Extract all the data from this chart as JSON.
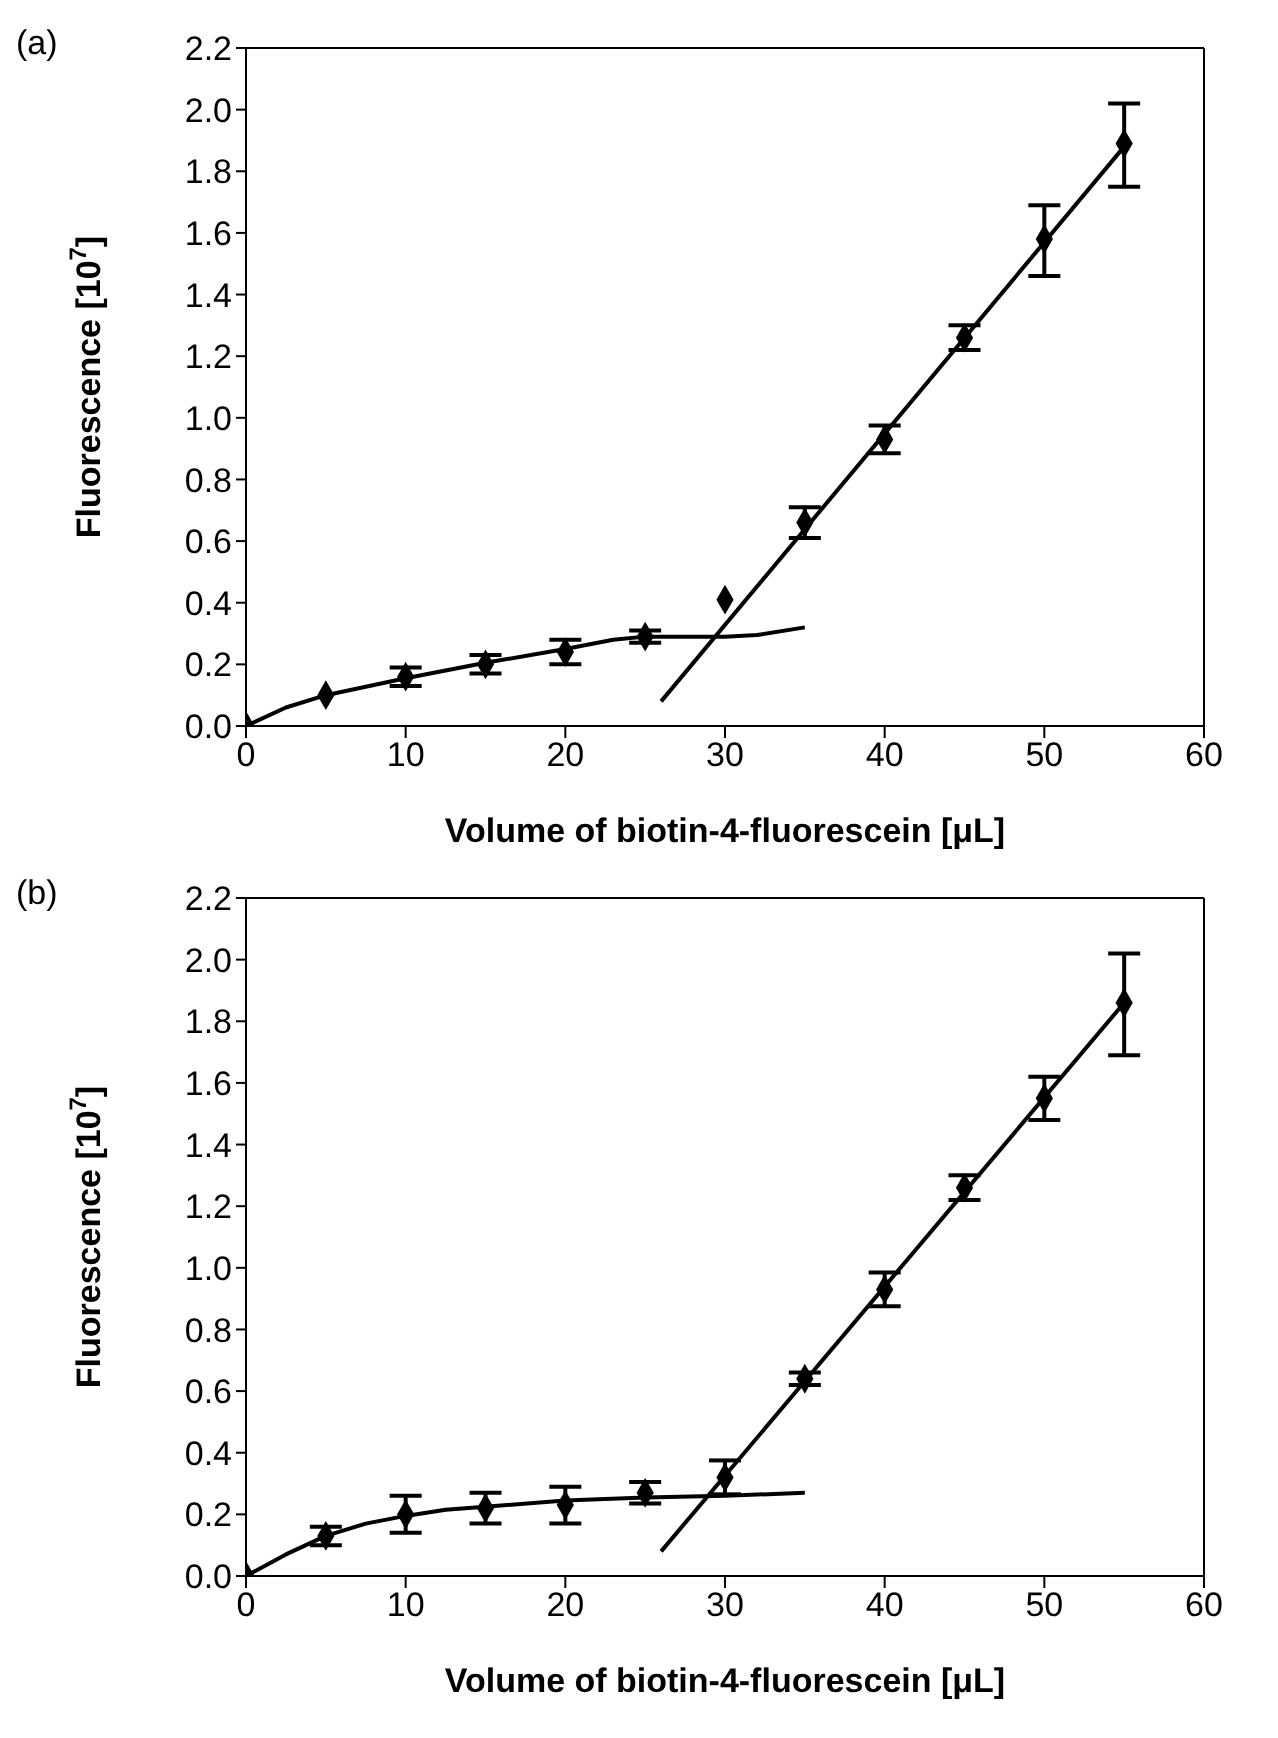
{
  "chart_data": [
    {
      "type": "scatter",
      "annotations": [
        "(a)"
      ],
      "xlabel": "Volume of biotin-4-fluorescein [μL]",
      "ylabel": "Fluorescence [10$^{7}$]",
      "xlim": [
        0,
        60
      ],
      "xticks": [
        0,
        10,
        20,
        30,
        40,
        50,
        60
      ],
      "ylim": [
        0,
        2.2
      ],
      "yticks": [
        {
          "value": 0,
          "label": "0.0"
        },
        {
          "value": 0.2,
          "label": "0.2"
        },
        {
          "value": 0.4,
          "label": "0.4"
        },
        {
          "value": 0.6,
          "label": "0.6"
        },
        {
          "value": 0.8,
          "label": "0.8"
        },
        {
          "value": 1,
          "label": "1.0"
        },
        {
          "value": 1.2,
          "label": "1.2"
        },
        {
          "value": 1.4,
          "label": "1.4"
        },
        {
          "value": 1.6,
          "label": "1.6"
        },
        {
          "value": 1.8,
          "label": "1.8"
        },
        {
          "value": 2,
          "label": "2.0"
        },
        {
          "value": 2.2,
          "label": "2.2"
        }
      ],
      "grid": false,
      "marker": "diamond",
      "series": [
        {
          "type": "scatter",
          "color": "#000000",
          "x": [
            0,
            5,
            10,
            15,
            20,
            25,
            30,
            35,
            40,
            45,
            50,
            55
          ],
          "values": [
            0,
            0.1,
            0.16,
            0.2,
            0.24,
            0.29,
            0.41,
            0.66,
            0.93,
            1.26,
            1.58,
            1.89
          ],
          "errors": [
            null,
            null,
            0.03,
            0.03,
            0.04,
            0.02,
            null,
            0.05,
            0.045,
            0.04,
            [
              1.46,
              1.69
            ],
            [
              1.75,
              2.02
            ]
          ]
        },
        {
          "type": "line",
          "marker": "none",
          "color": "#000000",
          "x": [
            0,
            2.5,
            5,
            10,
            15,
            20,
            23,
            25,
            30,
            32,
            35
          ],
          "values": [
            0,
            0.06,
            0.1,
            0.155,
            0.205,
            0.25,
            0.28,
            0.29,
            0.29,
            0.295,
            0.32
          ]
        },
        {
          "type": "line",
          "marker": "none",
          "color": "#000000",
          "x": [
            26,
            55
          ],
          "values": [
            0.08,
            1.88
          ]
        }
      ]
    },
    {
      "type": "scatter",
      "annotations": [
        "(b)"
      ],
      "xlabel": "Volume of biotin-4-fluorescein [μL]",
      "ylabel": "Fluorescence [10$^{7}$]",
      "xlim": [
        0,
        60
      ],
      "xticks": [
        0,
        10,
        20,
        30,
        40,
        50,
        60
      ],
      "ylim": [
        0,
        2.2
      ],
      "yticks": [
        {
          "value": 0,
          "label": "0.0"
        },
        {
          "value": 0.2,
          "label": "0.2"
        },
        {
          "value": 0.4,
          "label": "0.4"
        },
        {
          "value": 0.6,
          "label": "0.6"
        },
        {
          "value": 0.8,
          "label": "0.8"
        },
        {
          "value": 1,
          "label": "1.0"
        },
        {
          "value": 1.2,
          "label": "1.2"
        },
        {
          "value": 1.4,
          "label": "1.4"
        },
        {
          "value": 1.6,
          "label": "1.6"
        },
        {
          "value": 1.8,
          "label": "1.8"
        },
        {
          "value": 2,
          "label": "2.0"
        },
        {
          "value": 2.2,
          "label": "2.2"
        }
      ],
      "grid": false,
      "marker": "diamond",
      "series": [
        {
          "type": "scatter",
          "color": "#000000",
          "x": [
            0,
            5,
            10,
            15,
            20,
            25,
            30,
            35,
            40,
            45,
            50,
            55
          ],
          "values": [
            0,
            0.13,
            0.2,
            0.22,
            0.23,
            0.27,
            0.32,
            0.64,
            0.93,
            1.26,
            1.55,
            1.86
          ],
          "errors": [
            null,
            0.03,
            0.06,
            0.05,
            0.06,
            0.035,
            0.055,
            0.02,
            0.055,
            0.04,
            0.07,
            [
              1.69,
              2.02
            ]
          ]
        },
        {
          "type": "line",
          "marker": "none",
          "color": "#000000",
          "x": [
            0,
            2.5,
            5,
            7.5,
            10,
            12.5,
            15,
            20,
            25,
            30,
            35
          ],
          "values": [
            0,
            0.07,
            0.13,
            0.17,
            0.195,
            0.215,
            0.225,
            0.245,
            0.255,
            0.26,
            0.27
          ]
        },
        {
          "type": "line",
          "marker": "none",
          "color": "#000000",
          "x": [
            26,
            55
          ],
          "values": [
            0.08,
            1.86
          ]
        }
      ]
    }
  ]
}
